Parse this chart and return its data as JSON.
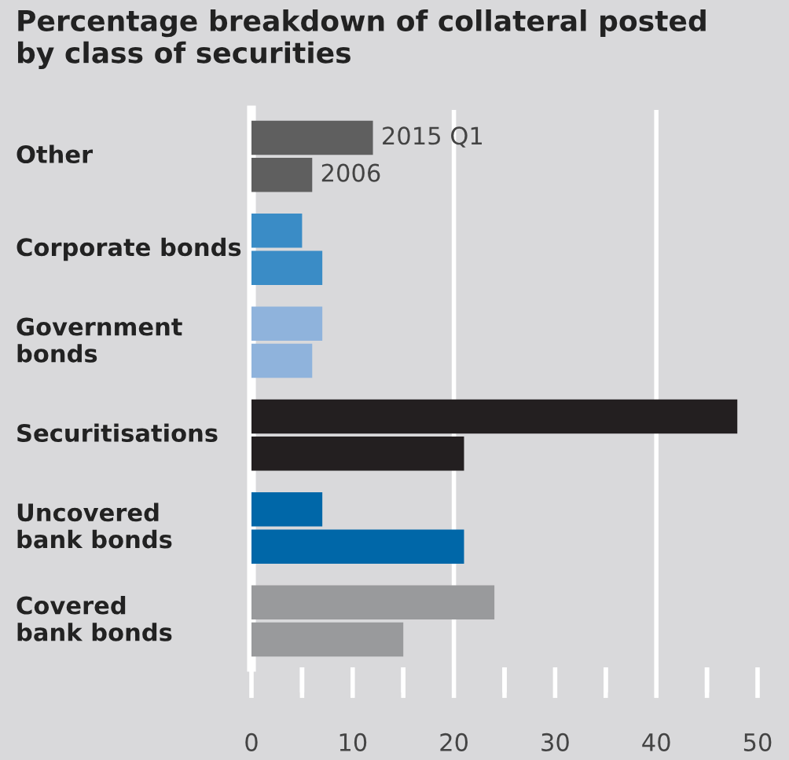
{
  "chart_data": {
    "type": "bar",
    "orientation": "horizontal",
    "title": "Percentage breakdown of collateral posted\nby class of securities",
    "categories": [
      "Other",
      "Corporate bonds",
      "Government\nbonds",
      "Securitisations",
      "Uncovered\nbank bonds",
      "Covered\nbank bonds"
    ],
    "series": [
      {
        "name": "2015 Q1",
        "colors": [
          "#5f5f5f",
          "#3a8cc6",
          "#8fb3dc",
          "#231f20",
          "#0067a8",
          "#999a9c"
        ],
        "values": [
          12,
          5,
          7,
          48,
          7,
          24
        ]
      },
      {
        "name": "2006",
        "colors": [
          "#5f5f5f",
          "#3a8cc6",
          "#8fb3dc",
          "#231f20",
          "#0067a8",
          "#999a9c"
        ],
        "values": [
          6,
          7,
          6,
          21,
          21,
          15
        ]
      }
    ],
    "xlim": [
      0,
      50
    ],
    "xticks": [
      0,
      {
        "value": 5,
        "label": null
      },
      10,
      {
        "value": 15,
        "label": null
      },
      20,
      {
        "value": 25,
        "label": null
      },
      30,
      {
        "value": 35,
        "label": null
      },
      40,
      {
        "value": 45,
        "label": null
      },
      50
    ],
    "ref_lines": [
      {
        "axis": "x",
        "value": 20,
        "color": "#ffffff"
      },
      {
        "axis": "x",
        "value": 40,
        "color": "#ffffff"
      }
    ],
    "grid": false,
    "legend": false
  }
}
